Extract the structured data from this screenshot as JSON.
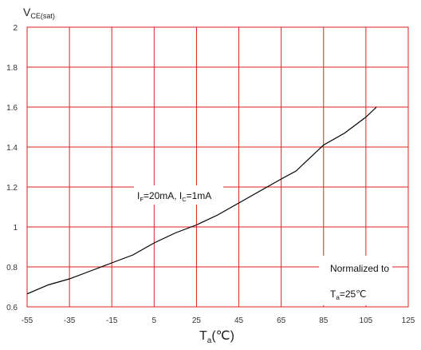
{
  "chart_data": {
    "type": "line",
    "title": "",
    "ylabel": {
      "main": "V",
      "sub": "CE(sat)"
    },
    "xlabel": {
      "main": "T",
      "sub": "a",
      "unit": "(℃)"
    },
    "xlim": [
      -55,
      125
    ],
    "ylim": [
      0.6,
      2
    ],
    "x_ticks": [
      -55,
      -35,
      -15,
      5,
      25,
      45,
      65,
      85,
      105,
      125
    ],
    "y_ticks": [
      0.6,
      0.8,
      1,
      1.2,
      1.4,
      1.6,
      1.8,
      2
    ],
    "grid": true,
    "grid_color": "#e0201c",
    "line_color": "#000000",
    "annotations": [
      {
        "parts": [
          {
            "t": "I"
          },
          {
            "t": "F",
            "sub": true
          },
          {
            "t": "=20mA,  I"
          },
          {
            "t": "C",
            "sub": true
          },
          {
            "t": "=1mA"
          }
        ]
      },
      {
        "parts": [
          {
            "t": "Normalized to"
          }
        ]
      },
      {
        "parts": [
          {
            "t": "T"
          },
          {
            "t": "a",
            "sub": true
          },
          {
            "t": "=25℃"
          }
        ]
      }
    ],
    "series": [
      {
        "x": [
          -55,
          -45,
          -35,
          -25,
          -15,
          -5,
          5,
          15,
          25,
          35,
          45,
          55,
          65,
          72,
          75,
          85,
          95,
          105,
          110
        ],
        "values": [
          0.665,
          0.71,
          0.74,
          0.78,
          0.82,
          0.86,
          0.92,
          0.97,
          1.01,
          1.06,
          1.12,
          1.18,
          1.24,
          1.28,
          1.31,
          1.41,
          1.47,
          1.55,
          1.6
        ]
      }
    ]
  }
}
